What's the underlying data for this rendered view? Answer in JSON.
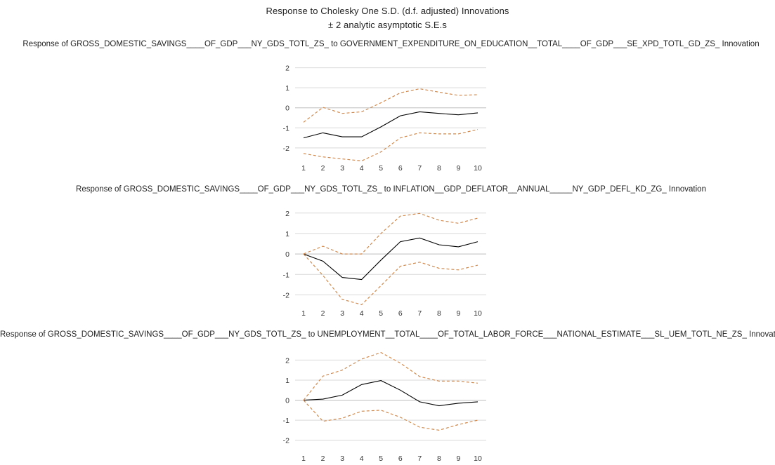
{
  "title": "Response to Cholesky One S.D. (d.f. adjusted) Innovations",
  "subtitle": "± 2 analytic asymptotic S.E.s",
  "colors": {
    "response": "#000000",
    "bands": "#d08a4e",
    "grid": "#d9d9d9"
  },
  "chart_data": [
    {
      "type": "line",
      "title": "Response of GROSS_DOMESTIC_SAVINGS____OF_GDP___NY_GDS_TOTL_ZS_ to GOVERNMENT_EXPENDITURE_ON_EDUCATION__TOTAL____OF_GDP___SE_XPD_TOTL_GD_ZS_ Innovation",
      "x": [
        1,
        2,
        3,
        4,
        5,
        6,
        7,
        8,
        9,
        10
      ],
      "ylim": [
        -2.6,
        2.3
      ],
      "yticks": [
        2,
        1,
        0,
        -1,
        -2
      ],
      "series": [
        {
          "name": "Response",
          "style": "solid",
          "values": [
            -1.5,
            -1.25,
            -1.45,
            -1.45,
            -0.95,
            -0.4,
            -0.2,
            -0.28,
            -0.35,
            -0.25
          ]
        },
        {
          "name": "+2 S.E.",
          "style": "dashed",
          "values": [
            -0.72,
            0.02,
            -0.28,
            -0.2,
            0.25,
            0.75,
            0.95,
            0.78,
            0.62,
            0.65
          ]
        },
        {
          "name": "-2 S.E.",
          "style": "dashed",
          "values": [
            -2.28,
            -2.45,
            -2.55,
            -2.65,
            -2.2,
            -1.5,
            -1.25,
            -1.3,
            -1.3,
            -1.08
          ]
        }
      ]
    },
    {
      "type": "line",
      "title": "Response of GROSS_DOMESTIC_SAVINGS____OF_GDP___NY_GDS_TOTL_ZS_ to INFLATION__GDP_DEFLATOR__ANNUAL_____NY_GDP_DEFL_KD_ZG_ Innovation",
      "x": [
        1,
        2,
        3,
        4,
        5,
        6,
        7,
        8,
        9,
        10
      ],
      "ylim": [
        -2.5,
        2.3
      ],
      "yticks": [
        2,
        1,
        0,
        -1,
        -2
      ],
      "series": [
        {
          "name": "Response",
          "style": "solid",
          "values": [
            0.0,
            -0.35,
            -1.15,
            -1.25,
            -0.3,
            0.6,
            0.78,
            0.45,
            0.35,
            0.6
          ]
        },
        {
          "name": "+2 S.E.",
          "style": "dashed",
          "values": [
            0.0,
            0.38,
            0.0,
            0.0,
            1.0,
            1.85,
            1.98,
            1.65,
            1.5,
            1.75
          ]
        },
        {
          "name": "-2 S.E.",
          "style": "dashed",
          "values": [
            0.0,
            -1.05,
            -2.22,
            -2.48,
            -1.55,
            -0.6,
            -0.4,
            -0.7,
            -0.78,
            -0.55
          ]
        }
      ]
    },
    {
      "type": "line",
      "title": "Response of GROSS_DOMESTIC_SAVINGS____OF_GDP___NY_GDS_TOTL_ZS_ to UNEMPLOYMENT__TOTAL____OF_TOTAL_LABOR_FORCE___NATIONAL_ESTIMATE___SL_UEM_TOTL_NE_ZS_ Innovation",
      "x": [
        1,
        2,
        3,
        4,
        5,
        6,
        7,
        8,
        9,
        10
      ],
      "ylim": [
        -2.5,
        2.4
      ],
      "yticks": [
        2,
        1,
        0,
        -1,
        -2
      ],
      "series": [
        {
          "name": "Response",
          "style": "solid",
          "values": [
            0.0,
            0.05,
            0.25,
            0.78,
            0.98,
            0.5,
            -0.08,
            -0.28,
            -0.15,
            -0.08
          ]
        },
        {
          "name": "+2 S.E.",
          "style": "dashed",
          "values": [
            0.0,
            1.2,
            1.5,
            2.05,
            2.38,
            1.85,
            1.18,
            0.95,
            0.95,
            0.85
          ]
        },
        {
          "name": "-2 S.E.",
          "style": "dashed",
          "values": [
            0.0,
            -1.05,
            -0.9,
            -0.55,
            -0.5,
            -0.85,
            -1.35,
            -1.5,
            -1.22,
            -1.0
          ]
        }
      ]
    }
  ]
}
